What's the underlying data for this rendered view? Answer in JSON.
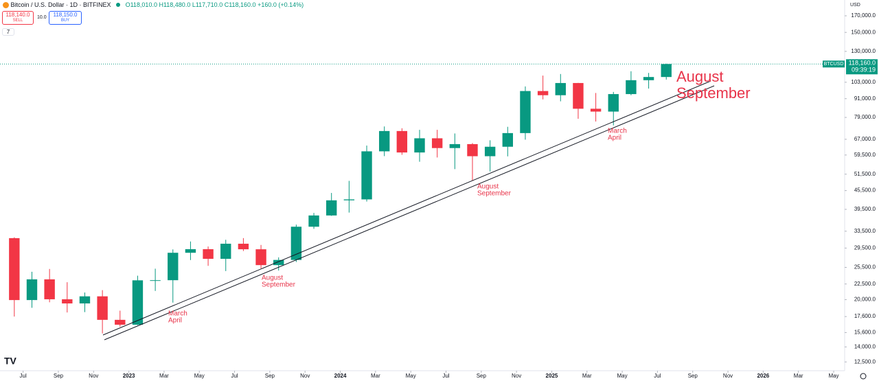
{
  "header": {
    "symbol": "Bitcoin / U.S. Dollar · 1D · BITFINEX",
    "ohlc": "O118,010.0 H118,480.0 L117,710.0 C118,160.0 +160.0 (+0.14%)",
    "sell_price": "118,140.0",
    "sell": "SELL",
    "spread": "10.0",
    "buy_price": "118,150.0",
    "buy": "BUY",
    "indicators": "7",
    "currency": "USD"
  },
  "chart_data": {
    "type": "candlestick",
    "log_scale": true,
    "up_color": "#089981",
    "down_color": "#f23645",
    "x": [
      "2022-06",
      "2022-07",
      "2022-08",
      "2022-09",
      "2022-10",
      "2022-11",
      "2022-12",
      "2023-01",
      "2023-02",
      "2023-03",
      "2023-04",
      "2023-05",
      "2023-06",
      "2023-07",
      "2023-08",
      "2023-09",
      "2023-10",
      "2023-11",
      "2023-12",
      "2024-01",
      "2024-02",
      "2024-03",
      "2024-04",
      "2024-05",
      "2024-06",
      "2024-07",
      "2024-08",
      "2024-09",
      "2024-10",
      "2024-11",
      "2024-12",
      "2025-01",
      "2025-02",
      "2025-03",
      "2025-04",
      "2025-05",
      "2025-06",
      "2025-07"
    ],
    "open": [
      31790,
      19930,
      23300,
      20050,
      19430,
      20500,
      17170,
      16550,
      23130,
      23150,
      28470,
      29250,
      27200,
      30480,
      29230,
      25940,
      26970,
      34650,
      37720,
      42280,
      42580,
      61180,
      71300,
      60650,
      67500,
      62700,
      64600,
      58970,
      63330,
      70200,
      96400,
      93400,
      102400,
      84350,
      82550,
      94200,
      104600,
      107150
    ],
    "high": [
      31990,
      24670,
      25200,
      22800,
      21100,
      21480,
      18400,
      23950,
      25250,
      29200,
      31000,
      29850,
      31400,
      31800,
      30200,
      27500,
      35200,
      38450,
      44700,
      48970,
      63900,
      73800,
      72800,
      71950,
      71950,
      70000,
      65100,
      66500,
      73600,
      99800,
      108300,
      109600,
      102500,
      95000,
      95750,
      111900,
      110500,
      118480
    ],
    "low": [
      17600,
      18800,
      19600,
      18150,
      18200,
      15500,
      16300,
      16500,
      21350,
      19550,
      26950,
      25800,
      24800,
      28850,
      25300,
      24900,
      26550,
      34100,
      37600,
      38550,
      41900,
      59000,
      59600,
      56550,
      58400,
      53500,
      49100,
      52550,
      58900,
      66800,
      90500,
      89200,
      78200,
      76600,
      74400,
      93400,
      98200,
      105100
    ],
    "close": [
      19930,
      23300,
      20050,
      19430,
      20500,
      17170,
      16550,
      23130,
      23150,
      28470,
      29250,
      27200,
      30480,
      29230,
      25940,
      26970,
      34650,
      37720,
      42280,
      42580,
      61180,
      71300,
      60650,
      67500,
      62700,
      64600,
      58970,
      63330,
      70200,
      96400,
      93400,
      102400,
      84350,
      82550,
      94200,
      104600,
      107150,
      118160
    ],
    "xlim": [
      "2022-06",
      "2026-05"
    ],
    "xticks": [
      {
        "value": "2022-07",
        "label": "Jul"
      },
      {
        "value": "2022-09",
        "label": "Sep"
      },
      {
        "value": "2022-11",
        "label": "Nov"
      },
      {
        "value": "2023-01",
        "label": "2023"
      },
      {
        "value": "2023-03",
        "label": "Mar"
      },
      {
        "value": "2023-05",
        "label": "May"
      },
      {
        "value": "2023-07",
        "label": "Jul"
      },
      {
        "value": "2023-09",
        "label": "Sep"
      },
      {
        "value": "2023-11",
        "label": "Nov"
      },
      {
        "value": "2024-01",
        "label": "2024"
      },
      {
        "value": "2024-03",
        "label": "Mar"
      },
      {
        "value": "2024-05",
        "label": "May"
      },
      {
        "value": "2024-07",
        "label": "Jul"
      },
      {
        "value": "2024-09",
        "label": "Sep"
      },
      {
        "value": "2024-11",
        "label": "Nov"
      },
      {
        "value": "2025-01",
        "label": "2025"
      },
      {
        "value": "2025-03",
        "label": "Mar"
      },
      {
        "value": "2025-05",
        "label": "May"
      },
      {
        "value": "2025-07",
        "label": "Jul"
      },
      {
        "value": "2025-09",
        "label": "Sep"
      },
      {
        "value": "2025-11",
        "label": "Nov"
      },
      {
        "value": "2026-01",
        "label": "2026"
      },
      {
        "value": "2026-03",
        "label": "Mar"
      },
      {
        "value": "2026-05",
        "label": "May"
      }
    ],
    "ylim": [
      11700,
      191500
    ],
    "yticks": [
      {
        "value": 170000,
        "label": "170,000.0"
      },
      {
        "value": 150000,
        "label": "150,000.0"
      },
      {
        "value": 130000,
        "label": "130,000.0"
      },
      {
        "value": 103000,
        "label": "103,000.0"
      },
      {
        "value": 91000,
        "label": "91,000.0"
      },
      {
        "value": 79000,
        "label": "79,000.0"
      },
      {
        "value": 67000,
        "label": "67,000.0"
      },
      {
        "value": 59500,
        "label": "59,500.0"
      },
      {
        "value": 51500,
        "label": "51,500.0"
      },
      {
        "value": 45500,
        "label": "45,500.0"
      },
      {
        "value": 39500,
        "label": "39,500.0"
      },
      {
        "value": 33500,
        "label": "33,500.0"
      },
      {
        "value": 29500,
        "label": "29,500.0"
      },
      {
        "value": 25500,
        "label": "25,500.0"
      },
      {
        "value": 22500,
        "label": "22,500.0"
      },
      {
        "value": 20000,
        "label": "20,000.0"
      },
      {
        "value": 17600,
        "label": "17,600.0"
      },
      {
        "value": 15600,
        "label": "15,600.0"
      },
      {
        "value": 14000,
        "label": "14,000.0"
      },
      {
        "value": 12500,
        "label": "12,500.0"
      }
    ],
    "annotations": [
      {
        "line1": "March",
        "line2": "April"
      },
      {
        "line1": "August",
        "line2": "September"
      },
      {
        "line1": "August",
        "line2": "September"
      },
      {
        "line1": "March",
        "line2": "April"
      },
      {
        "line1": "August",
        "line2": "September"
      }
    ],
    "price_label": {
      "symbol": "BTCUSD",
      "price": "118,160.0",
      "countdown": "09:39:19"
    }
  }
}
